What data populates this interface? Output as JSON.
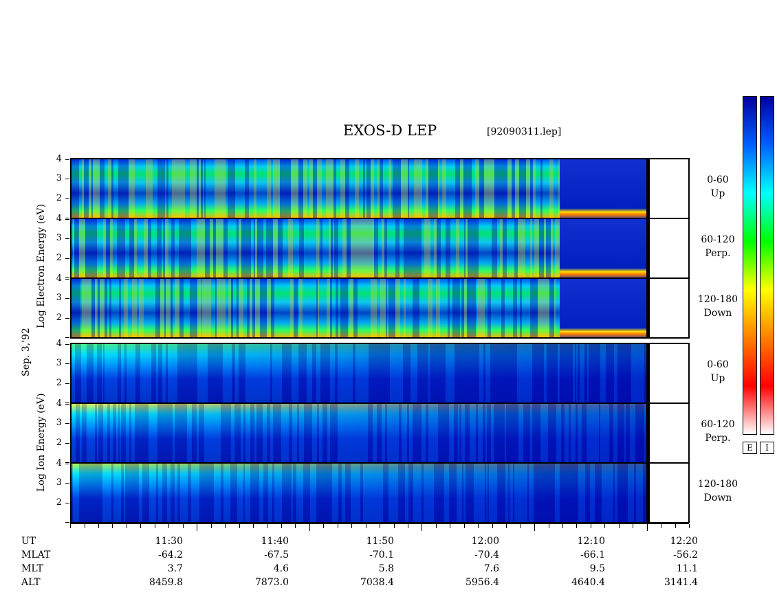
{
  "title": "EXOS-D LEP",
  "file_label": "[92090311.lep]",
  "date_label": "Sep. 3,'92",
  "electron_ylabel": "Log   Electron   Energy (eV)",
  "ion_ylabel": "Log   Ion   Energy (eV)",
  "colorbar": {
    "labels": [
      "E",
      "I"
    ],
    "colors": [
      "#ffffff",
      "#ff0000",
      "#ff8000",
      "#ffff00",
      "#00ff00",
      "#00ffff",
      "#0060ff",
      "#0000a0"
    ]
  },
  "chart_data": {
    "type": "heatmap",
    "panels": [
      {
        "species": "Electron",
        "pitch": [
          "0-60",
          "Up"
        ],
        "yticks": [
          "4",
          "3",
          "2"
        ],
        "ylim": [
          1,
          4
        ]
      },
      {
        "species": "Electron",
        "pitch": [
          "60-120",
          "Perp."
        ],
        "yticks": [
          "4",
          "3",
          "2"
        ],
        "ylim": [
          1,
          4
        ]
      },
      {
        "species": "Electron",
        "pitch": [
          "120-180",
          "Down"
        ],
        "yticks": [
          "4",
          "3",
          "2"
        ],
        "ylim": [
          1,
          4
        ]
      },
      {
        "species": "Ion",
        "pitch": [
          "0-60",
          "Up"
        ],
        "yticks": [
          "4",
          "3",
          "2"
        ],
        "ylim": [
          1,
          4
        ]
      },
      {
        "species": "Ion",
        "pitch": [
          "60-120",
          "Perp."
        ],
        "yticks": [
          "4",
          "3",
          "2"
        ],
        "ylim": [
          1,
          4
        ]
      },
      {
        "species": "Ion",
        "pitch": [
          "120-180",
          "Down"
        ],
        "yticks": [
          "4",
          "3",
          "2"
        ],
        "ylim": [
          1,
          4
        ]
      }
    ],
    "x_axis": {
      "rows": [
        {
          "label": "UT",
          "values": [
            "11:30",
            "11:40",
            "11:50",
            "12:00",
            "12:10",
            "12:20"
          ]
        },
        {
          "label": "MLAT",
          "values": [
            "-64.2",
            "-67.5",
            "-70.1",
            "-70.4",
            "-66.1",
            "-56.2"
          ]
        },
        {
          "label": "MLT",
          "values": [
            "3.7",
            "4.6",
            "5.8",
            "7.6",
            "9.5",
            "11.1"
          ]
        },
        {
          "label": "ALT",
          "values": [
            "8459.8",
            "7873.0",
            "7038.4",
            "5956.4",
            "4640.4",
            "3141.4"
          ]
        }
      ]
    }
  }
}
